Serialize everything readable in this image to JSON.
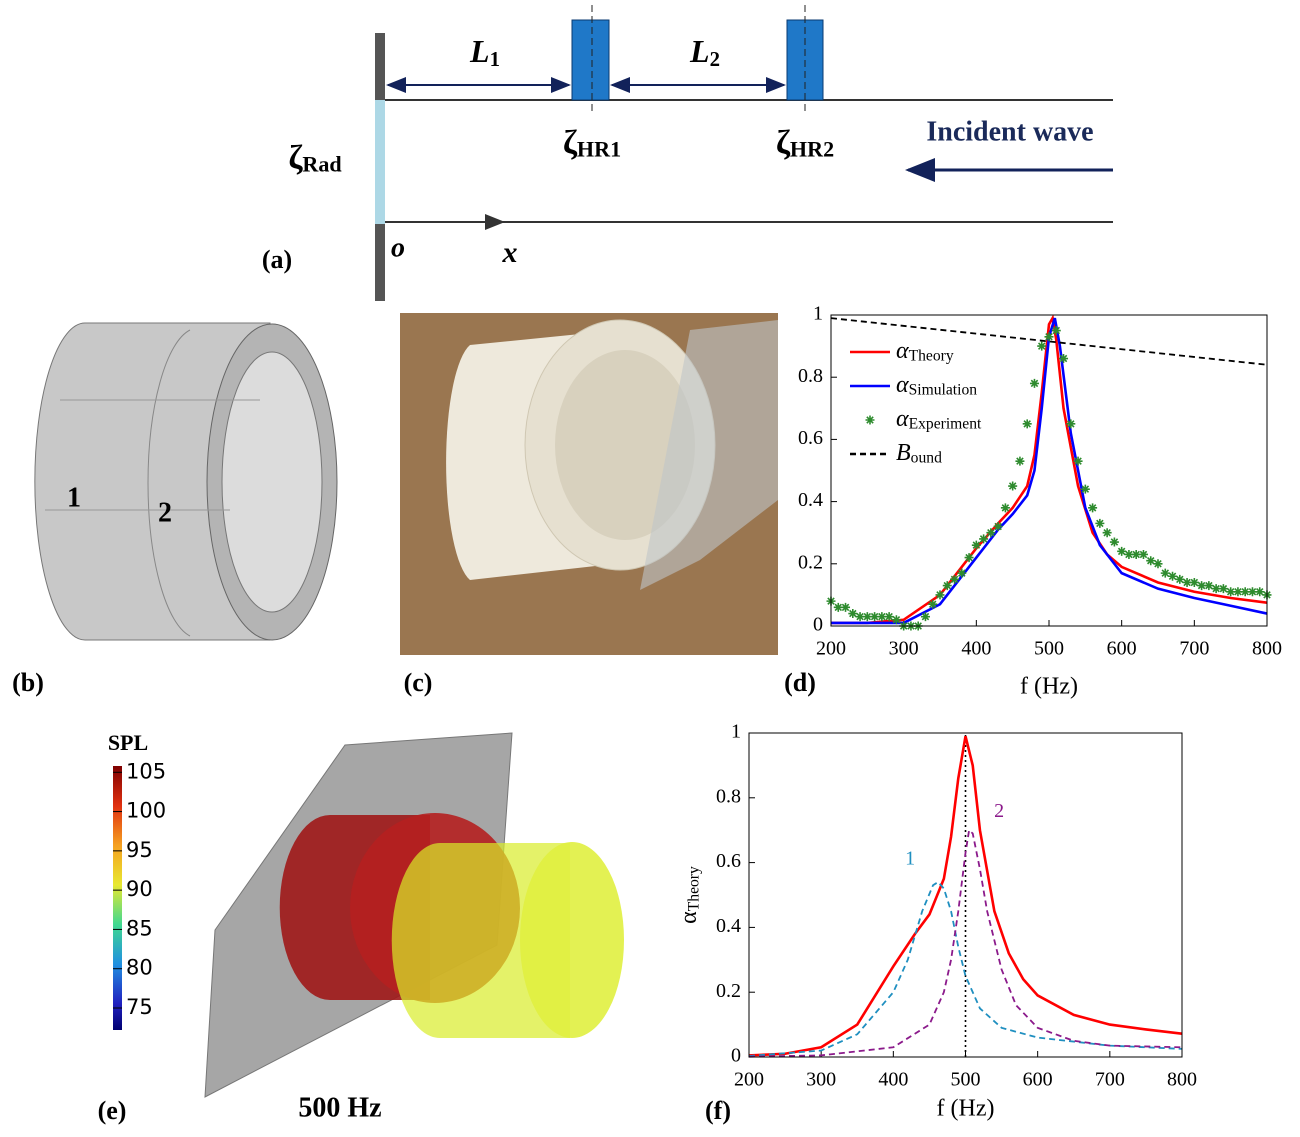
{
  "diagram": {
    "label": "(a)",
    "L1": "L1",
    "L2": "L2",
    "zeta_rad": "ζRad",
    "zeta_hr1": "ζHR1",
    "zeta_hr2": "ζHR2",
    "incident": "Incident wave",
    "origin": "o",
    "x_axis": "x"
  },
  "panel_b": {
    "label": "(b)",
    "part1": "1",
    "part2": "2"
  },
  "panel_c": {
    "label": "(c)"
  },
  "panel_e": {
    "label": "(e)",
    "caption": "500 Hz",
    "colorbar": {
      "title": "SPL",
      "lim": [
        72.2,
        105.8
      ],
      "ticks": [
        105,
        100,
        95,
        90,
        85,
        80,
        75
      ]
    }
  },
  "chart_data": [
    {
      "type": "line",
      "label": "(d)",
      "xlabel": "f (Hz)",
      "xlim": [
        200,
        800
      ],
      "ylim": [
        0,
        1
      ],
      "xticks": [
        200,
        300,
        400,
        500,
        600,
        700,
        800
      ],
      "yticks": [
        0,
        0.2,
        0.4,
        0.6,
        0.8,
        1
      ],
      "legend": "upper left",
      "series": [
        {
          "name": "αTheory",
          "color": "#ff0000",
          "style": "solid",
          "x": [
            200,
            250,
            300,
            350,
            400,
            430,
            450,
            470,
            480,
            490,
            500,
            505,
            510,
            520,
            540,
            560,
            580,
            600,
            650,
            700,
            750,
            800
          ],
          "values": [
            0.01,
            0.01,
            0.02,
            0.1,
            0.25,
            0.33,
            0.38,
            0.45,
            0.55,
            0.75,
            0.97,
            0.99,
            0.92,
            0.7,
            0.45,
            0.3,
            0.23,
            0.19,
            0.14,
            0.11,
            0.09,
            0.075
          ]
        },
        {
          "name": "αSimulation",
          "color": "#0000ff",
          "style": "solid",
          "x": [
            200,
            300,
            350,
            400,
            430,
            450,
            470,
            480,
            490,
            500,
            508,
            515,
            530,
            550,
            570,
            600,
            650,
            700,
            750,
            800
          ],
          "values": [
            0.01,
            0.01,
            0.07,
            0.22,
            0.31,
            0.36,
            0.42,
            0.5,
            0.7,
            0.93,
            0.99,
            0.9,
            0.62,
            0.38,
            0.26,
            0.17,
            0.12,
            0.09,
            0.065,
            0.04
          ]
        },
        {
          "name": "αExperiment",
          "color": "#2e8b2e",
          "style": "markers",
          "x": [
            200,
            210,
            220,
            230,
            240,
            250,
            260,
            270,
            280,
            290,
            300,
            310,
            320,
            330,
            340,
            350,
            360,
            370,
            380,
            390,
            400,
            410,
            420,
            430,
            440,
            450,
            460,
            470,
            480,
            490,
            500,
            510,
            520,
            530,
            540,
            550,
            560,
            570,
            580,
            590,
            600,
            610,
            620,
            630,
            640,
            650,
            660,
            670,
            680,
            690,
            700,
            710,
            720,
            730,
            740,
            750,
            760,
            770,
            780,
            790,
            800
          ],
          "values": [
            0.08,
            0.06,
            0.06,
            0.04,
            0.03,
            0.03,
            0.03,
            0.03,
            0.03,
            0.02,
            0,
            0,
            0,
            0.03,
            0.07,
            0.1,
            0.13,
            0.15,
            0.17,
            0.22,
            0.26,
            0.28,
            0.3,
            0.32,
            0.38,
            0.45,
            0.53,
            0.65,
            0.78,
            0.9,
            0.93,
            0.95,
            0.86,
            0.65,
            0.53,
            0.44,
            0.38,
            0.33,
            0.3,
            0.27,
            0.24,
            0.23,
            0.23,
            0.23,
            0.21,
            0.2,
            0.17,
            0.16,
            0.15,
            0.14,
            0.14,
            0.13,
            0.13,
            0.12,
            0.12,
            0.11,
            0.11,
            0.11,
            0.11,
            0.11,
            0.1
          ]
        },
        {
          "name": "Bound",
          "color": "#000000",
          "style": "dashed",
          "x": [
            200,
            800
          ],
          "values": [
            0.99,
            0.84
          ]
        }
      ]
    },
    {
      "type": "line",
      "label": "(f)",
      "xlabel": "f (Hz)",
      "ylabel": "αTheory",
      "xlim": [
        200,
        800
      ],
      "ylim": [
        0,
        1
      ],
      "xticks": [
        200,
        300,
        400,
        500,
        600,
        700,
        800
      ],
      "yticks": [
        0,
        0.2,
        0.4,
        0.6,
        0.8,
        1
      ],
      "vline": 500,
      "series": [
        {
          "color": "#ff0000",
          "style": "solid",
          "x": [
            200,
            250,
            300,
            350,
            400,
            430,
            450,
            470,
            480,
            490,
            500,
            510,
            520,
            540,
            560,
            580,
            600,
            650,
            700,
            750,
            800
          ],
          "values": [
            0.005,
            0.01,
            0.03,
            0.1,
            0.28,
            0.38,
            0.44,
            0.55,
            0.68,
            0.86,
            0.99,
            0.9,
            0.7,
            0.45,
            0.32,
            0.24,
            0.19,
            0.13,
            0.1,
            0.085,
            0.072
          ]
        },
        {
          "name": "1",
          "color": "#1f8fc0",
          "style": "dashed",
          "x": [
            200,
            300,
            350,
            400,
            420,
            440,
            455,
            462,
            470,
            480,
            490,
            500,
            520,
            550,
            600,
            700,
            800
          ],
          "values": [
            0.003,
            0.02,
            0.07,
            0.2,
            0.3,
            0.45,
            0.53,
            0.54,
            0.52,
            0.45,
            0.34,
            0.25,
            0.15,
            0.09,
            0.06,
            0.035,
            0.025
          ]
        },
        {
          "name": "2",
          "color": "#8b1a8b",
          "style": "dashed",
          "x": [
            200,
            300,
            400,
            450,
            470,
            480,
            490,
            500,
            505,
            510,
            520,
            530,
            550,
            570,
            600,
            650,
            700,
            800
          ],
          "values": [
            0.001,
            0.005,
            0.03,
            0.1,
            0.2,
            0.3,
            0.45,
            0.63,
            0.7,
            0.69,
            0.58,
            0.45,
            0.27,
            0.16,
            0.09,
            0.05,
            0.035,
            0.03
          ]
        }
      ]
    }
  ]
}
